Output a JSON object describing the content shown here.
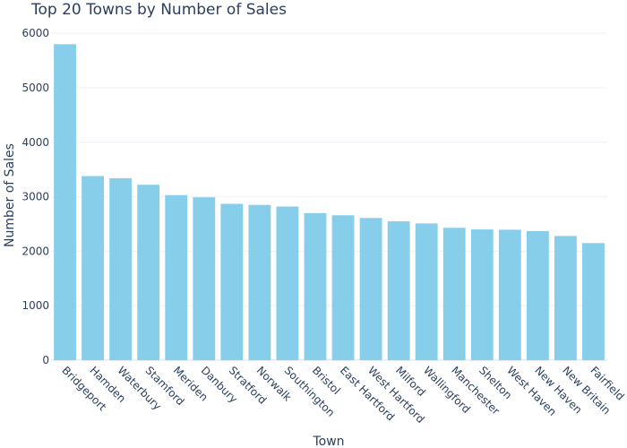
{
  "chart_data": {
    "type": "bar",
    "title": "Top 20 Towns by Number of Sales",
    "xlabel": "Town",
    "ylabel": "Number of Sales",
    "ylim": [
      0,
      6200
    ],
    "yticks": [
      0,
      1000,
      2000,
      3000,
      4000,
      5000,
      6000
    ],
    "grid": true,
    "legend": "none",
    "bar_color": "#87ceeb",
    "categories": [
      "Bridgeport",
      "Hamden",
      "Waterbury",
      "Stamford",
      "Meriden",
      "Danbury",
      "Stratford",
      "Norwalk",
      "Southington",
      "Bristol",
      "East Hartford",
      "West Hartford",
      "Milford",
      "Wallingford",
      "Manchester",
      "Shelton",
      "West Haven",
      "New Haven",
      "New Britain",
      "Fairfield"
    ],
    "values": [
      5800,
      3380,
      3340,
      3220,
      3030,
      2990,
      2870,
      2850,
      2820,
      2700,
      2660,
      2610,
      2550,
      2510,
      2430,
      2400,
      2395,
      2370,
      2280,
      2150
    ]
  }
}
